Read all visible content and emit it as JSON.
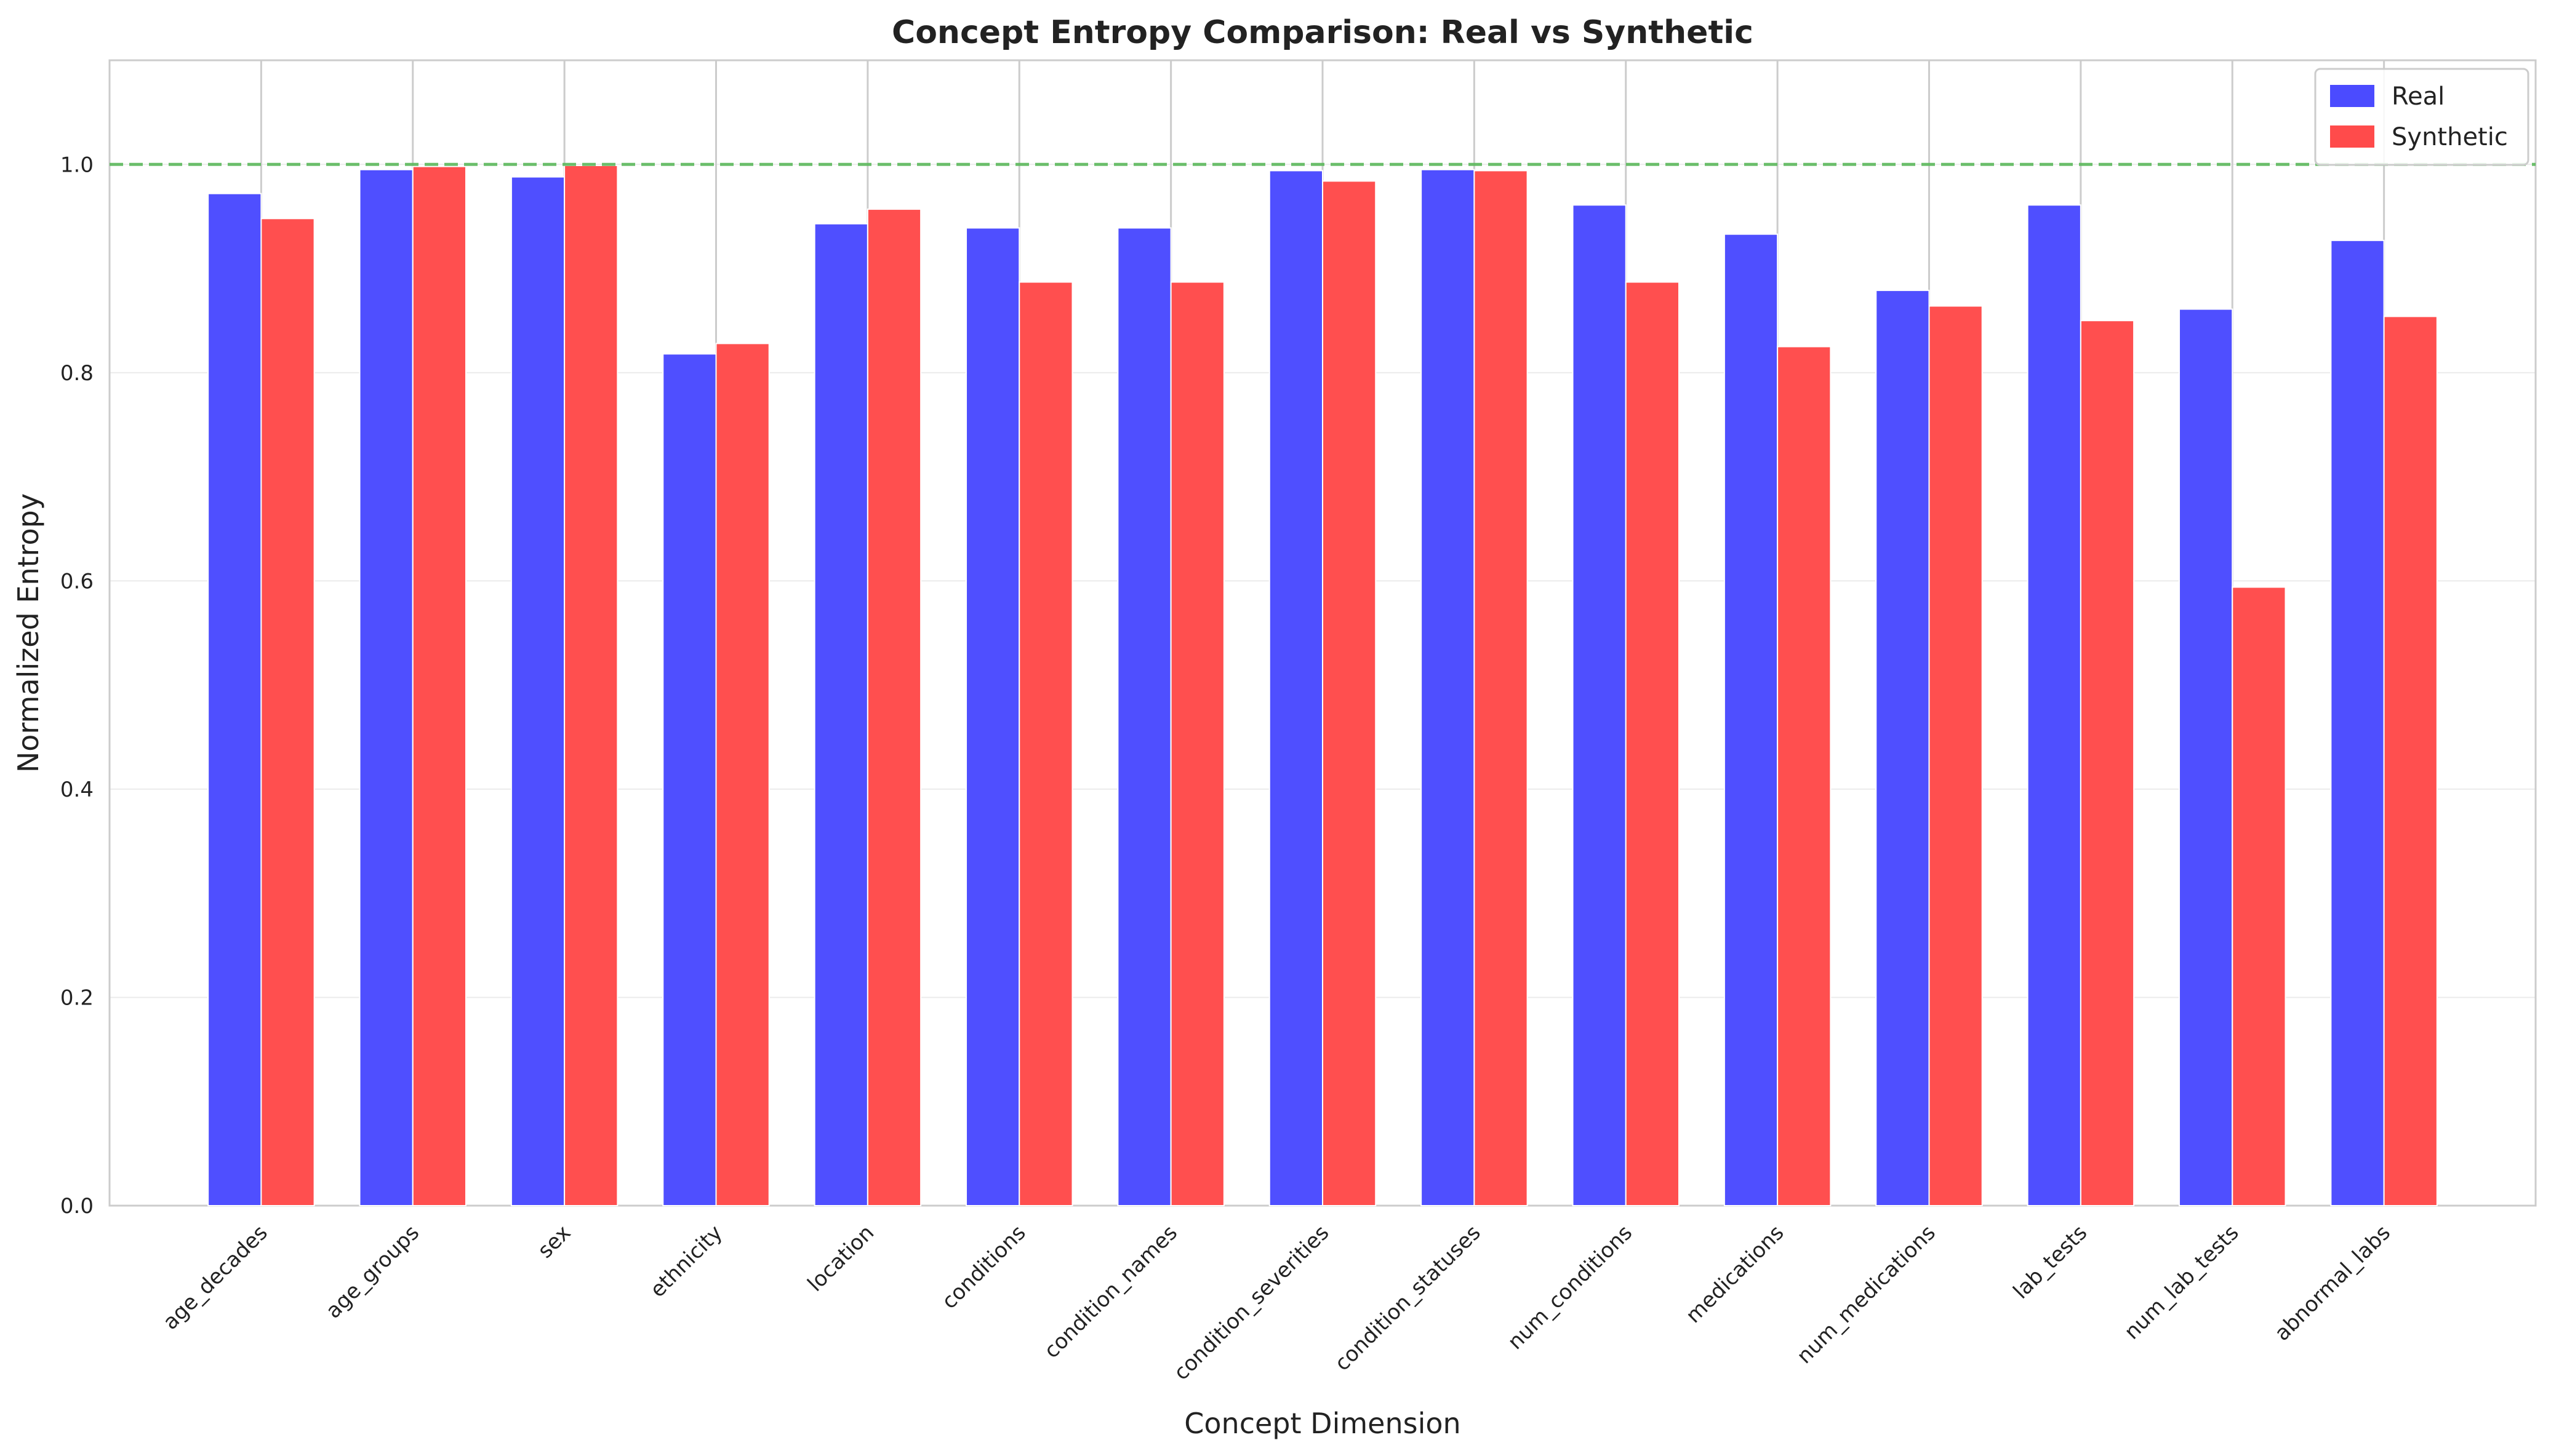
{
  "chart_data": {
    "type": "bar",
    "title": "Concept Entropy Comparison: Real vs Synthetic",
    "xlabel": "Concept Dimension",
    "ylabel": "Normalized Entropy",
    "ylim": [
      0,
      1.1
    ],
    "yticks": [
      "0.0",
      "0.2",
      "0.4",
      "0.6",
      "0.8",
      "1.0"
    ],
    "grid": true,
    "legend_position": "top-right",
    "reference_line": {
      "y": 1.0,
      "color": "#5cb85c",
      "style": "dashed"
    },
    "categories": [
      "age_decades",
      "age_groups",
      "sex",
      "ethnicity",
      "location",
      "conditions",
      "condition_names",
      "condition_severities",
      "condition_statuses",
      "num_conditions",
      "medications",
      "num_medications",
      "lab_tests",
      "num_lab_tests",
      "abnormal_labs"
    ],
    "series": [
      {
        "name": "Real",
        "color": "#4b4bff",
        "values": [
          0.972,
          0.995,
          0.988,
          0.818,
          0.943,
          0.939,
          0.939,
          0.994,
          0.995,
          0.961,
          0.933,
          0.879,
          0.961,
          0.861,
          0.927
        ]
      },
      {
        "name": "Synthetic",
        "color": "#ff4b4b",
        "values": [
          0.948,
          0.998,
          0.999,
          0.828,
          0.957,
          0.887,
          0.887,
          0.984,
          0.994,
          0.887,
          0.825,
          0.864,
          0.85,
          0.594,
          0.854
        ]
      }
    ]
  }
}
